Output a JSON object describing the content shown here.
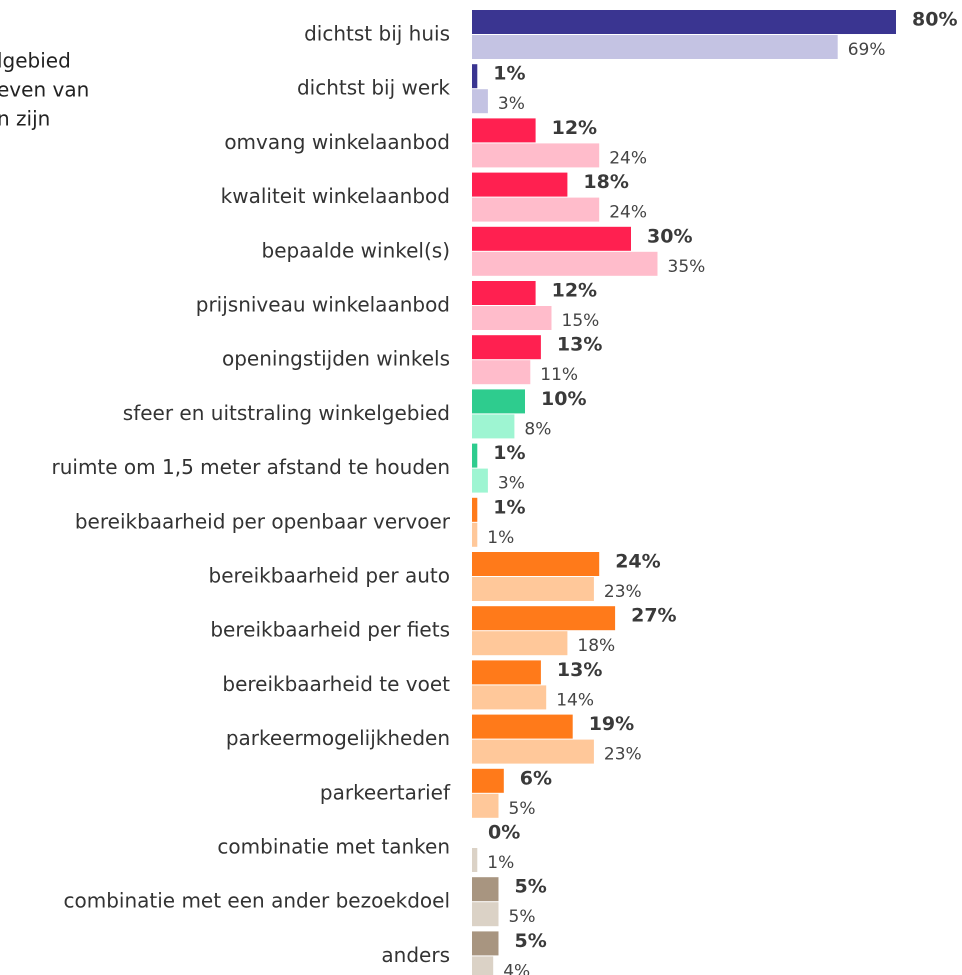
{
  "chart_data": {
    "type": "bar",
    "orientation": "horizontal",
    "annotation": [
      "lgebied",
      "even van",
      "n zijn"
    ],
    "categories": [
      "dichtst bij huis",
      "dichtst bij werk",
      "omvang winkelaanbod",
      "kwaliteit winkelaanbod",
      "bepaalde winkel(s)",
      "prijsniveau winkelaanbod",
      "openingstijden winkels",
      "sfeer en uitstraling winkelgebied",
      "ruimte om 1,5 meter afstand te houden",
      "bereikbaarheid per openbaar vervoer",
      "bereikbaarheid per auto",
      "bereikbaarheid per fiets",
      "bereikbaarheid te voet",
      "parkeermogelijkheden",
      "parkeertarief",
      "combinatie met tanken",
      "combinatie met een ander bezoekdoel",
      "anders"
    ],
    "xlim": [
      0,
      80
    ],
    "series": [
      {
        "colors": [
          "#3a3591",
          "#3a3591",
          "#ff2050",
          "#ff2050",
          "#ff2050",
          "#ff2050",
          "#ff2050",
          "#2ecc8e",
          "#2ecc8e",
          "#ff7a1a",
          "#ff7a1a",
          "#ff7a1a",
          "#ff7a1a",
          "#ff7a1a",
          "#ff7a1a",
          "#a89580",
          "#a89580",
          "#a89580"
        ],
        "values": [
          80,
          1,
          12,
          18,
          30,
          12,
          13,
          10,
          1,
          1,
          24,
          27,
          13,
          19,
          6,
          0,
          5,
          5
        ],
        "value_labels": [
          "80%",
          "1%",
          "12%",
          "18%",
          "30%",
          "12%",
          "13%",
          "10%",
          "1%",
          "1%",
          "24%",
          "27%",
          "13%",
          "19%",
          "6%",
          "0%",
          "5%",
          "5%"
        ]
      },
      {
        "colors": [
          "#c4c3e3",
          "#c4c3e3",
          "#ffbccb",
          "#ffbccb",
          "#ffbccb",
          "#ffbccb",
          "#ffbccb",
          "#9ef5d2",
          "#9ef5d2",
          "#ffc89a",
          "#ffc89a",
          "#ffc89a",
          "#ffc89a",
          "#ffc89a",
          "#ffc89a",
          "#dbd2c6",
          "#dbd2c6",
          "#dbd2c6"
        ],
        "values": [
          69,
          3,
          24,
          24,
          35,
          15,
          11,
          8,
          3,
          1,
          23,
          18,
          14,
          23,
          5,
          1,
          5,
          4
        ],
        "value_labels": [
          "69%",
          "3%",
          "24%",
          "24%",
          "35%",
          "15%",
          "11%",
          "8%",
          "3%",
          "1%",
          "23%",
          "18%",
          "14%",
          "23%",
          "5%",
          "1%",
          "5%",
          "4%"
        ]
      }
    ]
  }
}
